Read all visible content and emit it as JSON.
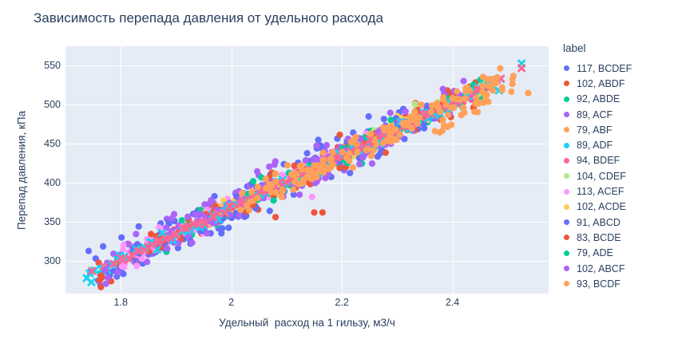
{
  "chart_data": {
    "type": "scatter",
    "title": "Зависимость перепада давления от удельного расхода",
    "xlabel": "Удельный  расход на 1 гильзу, м3/ч",
    "ylabel": "Перепад давления, кПа",
    "legend_title": "label",
    "legend_position": "right",
    "grid": true,
    "plot_bg": "#E5ECF6",
    "grid_color": "#ffffff",
    "text_color": "#2a3f5f",
    "x_range": [
      1.7,
      2.574
    ],
    "y_range": [
      258,
      575
    ],
    "x_ticks": [
      "1.8",
      "2",
      "2.2",
      "2.4"
    ],
    "x_tick_values": [
      1.8,
      2.0,
      2.2,
      2.4
    ],
    "y_ticks": [
      "300",
      "350",
      "400",
      "450",
      "500",
      "550"
    ],
    "y_tick_values": [
      300,
      350,
      400,
      450,
      500,
      550
    ],
    "trend": {
      "slope": 334,
      "intercept": -299.5,
      "note": "all groups lie on one linear trend: pressure drop ~ 334 * specific_flow - 299.5 kPa; x spans ~1.74-2.52 m3/h, y spans ~275-553 kPa"
    },
    "series": [
      {
        "label": "117, BCDEF",
        "color": "#636EFA",
        "symbol": "circle",
        "n": 117,
        "sigma": 13,
        "x_min": 1.74,
        "x_max": 2.34,
        "pow": 1.3
      },
      {
        "label": "102, ABDF",
        "color": "#EF553B",
        "symbol": "circle",
        "n": 102,
        "sigma": 11,
        "x_min": 1.76,
        "x_max": 2.46,
        "pow": 1.1
      },
      {
        "label": "92, ABDE",
        "color": "#00CC96",
        "symbol": "circle",
        "n": 92,
        "sigma": 7,
        "x_min": 1.88,
        "x_max": 2.46,
        "pow": 1.0
      },
      {
        "label": "89, ACF",
        "color": "#AB63FA",
        "symbol": "circle",
        "n": 89,
        "sigma": 13,
        "x_min": 1.77,
        "x_max": 2.3,
        "pow": 1.2
      },
      {
        "label": "79, ABF",
        "color": "#FFA15A",
        "symbol": "circle",
        "n": 79,
        "sigma": 8,
        "x_min": 2.0,
        "x_max": 2.49,
        "pow": 0.9
      },
      {
        "label": "89, ADF",
        "color": "#19D3F3",
        "symbol": "x",
        "n": 89,
        "sigma": 4,
        "x_min": 1.74,
        "x_max": 2.49,
        "even": true
      },
      {
        "label": "94, BDEF",
        "color": "#FF6692",
        "symbol": "x",
        "n": 94,
        "sigma": 2,
        "x_min": 1.79,
        "x_max": 2.49,
        "even": true
      },
      {
        "label": "104, CDEF",
        "color": "#B6E880",
        "symbol": "circle",
        "n": 104,
        "sigma": 6,
        "x_min": 1.95,
        "x_max": 2.46,
        "pow": 1.0
      },
      {
        "label": "113, ACEF",
        "color": "#FF97FF",
        "symbol": "circle",
        "n": 113,
        "sigma": 7,
        "x_min": 1.8,
        "x_max": 2.25,
        "pow": 1.2
      },
      {
        "label": "102, ACDE",
        "color": "#FECB52",
        "symbol": "circle",
        "n": 102,
        "sigma": 6,
        "x_min": 1.95,
        "x_max": 2.38,
        "pow": 1.0
      },
      {
        "label": "91, ABCD",
        "color": "#636EFA",
        "symbol": "circle",
        "n": 91,
        "sigma": 11,
        "x_min": 1.82,
        "x_max": 2.4,
        "pow": 1.2
      },
      {
        "label": "83, BCDE",
        "color": "#EF553B",
        "symbol": "circle",
        "n": 83,
        "sigma": 9,
        "x_min": 1.85,
        "x_max": 2.46,
        "pow": 1.0
      },
      {
        "label": "79, ADE",
        "color": "#00CC96",
        "symbol": "circle",
        "n": 79,
        "sigma": 6,
        "x_min": 2.0,
        "x_max": 2.46,
        "pow": 0.9
      },
      {
        "label": "102, ABCF",
        "color": "#AB63FA",
        "symbol": "circle",
        "n": 102,
        "sigma": 12,
        "x_min": 1.88,
        "x_max": 2.44,
        "pow": 1.1
      },
      {
        "label": "93, BCDF",
        "color": "#FFA15A",
        "symbol": "circle",
        "n": 93,
        "sigma": 9,
        "x_min": 2.05,
        "x_max": 2.52,
        "pow": 0.8,
        "below_tail": true
      }
    ],
    "outliers": [
      {
        "x": 2.525,
        "y": 553,
        "color": "#19D3F3",
        "symbol": "x"
      },
      {
        "x": 2.525,
        "y": 547,
        "color": "#FF6692",
        "symbol": "x"
      },
      {
        "x": 2.537,
        "y": 515,
        "color": "#FFA15A",
        "symbol": "circle"
      },
      {
        "x": 1.744,
        "y": 284,
        "color": "#19D3F3",
        "symbol": "x"
      },
      {
        "x": 1.748,
        "y": 287,
        "color": "#FF6692",
        "symbol": "x"
      },
      {
        "x": 1.768,
        "y": 290,
        "color": "#19D3F3",
        "symbol": "x"
      },
      {
        "x": 1.77,
        "y": 293,
        "color": "#FF6692",
        "symbol": "x"
      },
      {
        "x": 1.772,
        "y": 288,
        "color": "#AB63FA",
        "symbol": "circle"
      },
      {
        "x": 1.762,
        "y": 275,
        "color": "#EF553B",
        "symbol": "circle"
      },
      {
        "x": 2.15,
        "y": 362,
        "color": "#EF553B",
        "symbol": "circle"
      },
      {
        "x": 2.165,
        "y": 362,
        "color": "#EF553B",
        "symbol": "circle"
      },
      {
        "x": 2.08,
        "y": 356,
        "color": "#EF553B",
        "symbol": "circle"
      },
      {
        "x": 2.146,
        "y": 382,
        "color": "#FF97FF",
        "symbol": "circle"
      }
    ]
  }
}
